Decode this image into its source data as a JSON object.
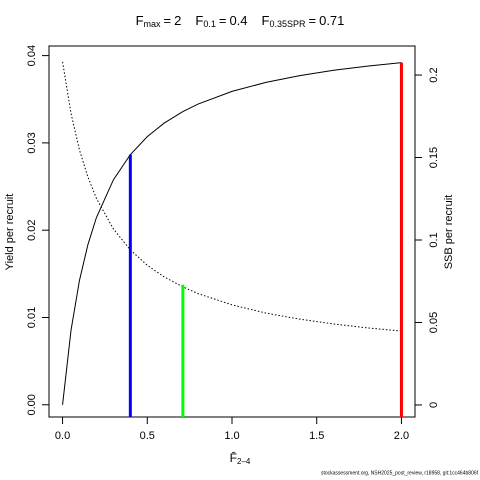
{
  "chart_data": {
    "type": "line",
    "reference_lines": [
      {
        "symbol": "F",
        "subscript": "max",
        "relation": "=",
        "value": 2,
        "top": 0.0392,
        "color": "#ff0000"
      },
      {
        "symbol": "F",
        "subscript": "0.1",
        "relation": "=",
        "value": 0.4,
        "top": 0.02865,
        "color": "#0000ff"
      },
      {
        "symbol": "F",
        "subscript": "0.35SPR",
        "relation": "=",
        "value": 0.71,
        "top": 0.01375,
        "color": "#00ff00"
      }
    ],
    "x": [
      0,
      0.05,
      0.1,
      0.15,
      0.2,
      0.3,
      0.4,
      0.5,
      0.6,
      0.71,
      0.8,
      1.0,
      1.2,
      1.4,
      1.6,
      1.8,
      2.0
    ],
    "series": [
      {
        "name": "Yield per recruit",
        "color": "#000000",
        "dash": "none",
        "values": [
          0,
          0.00855,
          0.01427,
          0.01837,
          0.02145,
          0.02577,
          0.02865,
          0.03072,
          0.03227,
          0.03359,
          0.03445,
          0.0359,
          0.03693,
          0.03771,
          0.03832,
          0.0388,
          0.0392
        ]
      },
      {
        "name": "SSB per recruit",
        "color": "#000000",
        "dash": "1.5 2",
        "axis": "y2",
        "values": [
          0.208,
          0.1767,
          0.1545,
          0.138,
          0.1252,
          0.1067,
          0.094,
          0.0847,
          0.0776,
          0.0716,
          0.0675,
          0.0607,
          0.0557,
          0.052,
          0.0491,
          0.0467,
          0.0448
        ]
      }
    ],
    "xlabel": "F̄",
    "xlabel_subscript": "2–4",
    "xlim": [
      -0.08,
      2.08
    ],
    "xticks": [
      {
        "value": 0,
        "label": "0.0"
      },
      0.5,
      {
        "value": 1,
        "label": "1.0"
      },
      1.5,
      {
        "value": 2,
        "label": "2.0"
      }
    ],
    "ylim": [
      -0.0014,
      0.0411
    ],
    "yticks": [
      {
        "value": 0,
        "label": "0.00"
      },
      0.01,
      0.02,
      0.03,
      {
        "value": 0.04,
        "label": "0.04"
      }
    ],
    "y2lim": [
      -0.0073,
      0.2176
    ],
    "y2ticks": [
      0,
      0.05,
      0.1,
      0.15,
      0.2
    ],
    "footer": "stockassessment.org, NSH2025_post_review, r18958, git:1cc464b806f"
  }
}
